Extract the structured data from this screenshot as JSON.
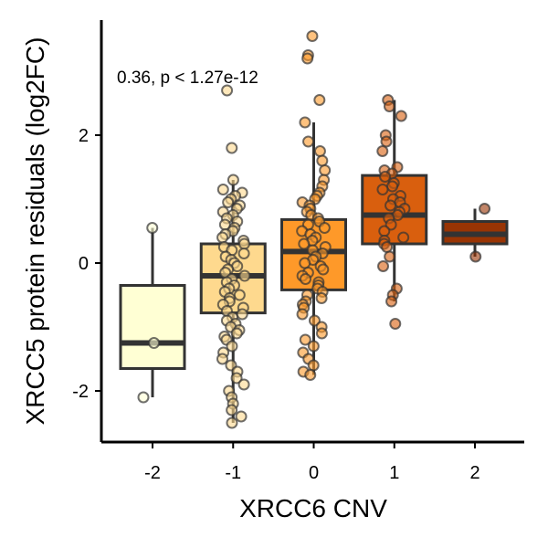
{
  "chart_data": {
    "type": "box",
    "xlabel": "XRCC6 CNV",
    "ylabel": "XRCC5 protein residuals (log2FC)",
    "annotation": "0.36,  p <  1.27e-12",
    "categories": [
      "-2",
      "-1",
      "0",
      "1",
      "2"
    ],
    "x_ticks": [
      "-2",
      "-1",
      "0",
      "1",
      "2"
    ],
    "y_ticks": [
      -2,
      0,
      2
    ],
    "ylim": [
      -2.8,
      3.8
    ],
    "grid": false,
    "colors": [
      "#ffffd4",
      "#fed98e",
      "#fe9929",
      "#d95f0e",
      "#993404"
    ],
    "boxes": [
      {
        "category": "-2",
        "q1": -1.65,
        "median": -1.25,
        "q3": -0.35,
        "whisker_low": -2.1,
        "whisker_high": 0.55
      },
      {
        "category": "-1",
        "q1": -0.78,
        "median": -0.2,
        "q3": 0.3,
        "whisker_low": -2.5,
        "whisker_high": 1.3
      },
      {
        "category": "0",
        "q1": -0.42,
        "median": 0.18,
        "q3": 0.68,
        "whisker_low": -1.75,
        "whisker_high": 2.2
      },
      {
        "category": "1",
        "q1": 0.3,
        "median": 0.75,
        "q3": 1.37,
        "whisker_low": -0.6,
        "whisker_high": 2.55
      },
      {
        "category": "2",
        "q1": 0.3,
        "median": 0.45,
        "q3": 0.65,
        "whisker_low": 0.1,
        "whisker_high": 0.85
      }
    ],
    "points": [
      {
        "category": "-2",
        "y": [
          0.55,
          -1.25,
          -2.1
        ]
      },
      {
        "category": "-1",
        "y": [
          2.7,
          1.8,
          1.3,
          1.15,
          1.1,
          1.05,
          1.0,
          0.95,
          0.9,
          0.85,
          0.8,
          0.75,
          0.7,
          0.65,
          0.6,
          0.55,
          0.5,
          0.45,
          0.4,
          0.35,
          0.3,
          0.25,
          0.2,
          0.15,
          0.1,
          0.05,
          0.0,
          -0.05,
          -0.1,
          -0.15,
          -0.2,
          -0.25,
          -0.3,
          -0.35,
          -0.4,
          -0.45,
          -0.5,
          -0.55,
          -0.6,
          -0.65,
          -0.7,
          -0.75,
          -0.8,
          -0.85,
          -0.9,
          -0.95,
          -1.0,
          -1.05,
          -1.1,
          -1.15,
          -1.2,
          -1.3,
          -1.4,
          -1.5,
          -1.6,
          -1.7,
          -1.8,
          -1.9,
          -2.0,
          -2.1,
          -2.2,
          -2.3,
          -2.4,
          -2.5
        ]
      },
      {
        "category": "0",
        "y": [
          3.55,
          3.25,
          3.2,
          2.55,
          2.2,
          1.9,
          1.75,
          1.6,
          1.45,
          1.3,
          1.2,
          1.1,
          1.05,
          1.0,
          0.95,
          0.9,
          0.85,
          0.8,
          0.75,
          0.7,
          0.65,
          0.6,
          0.55,
          0.5,
          0.45,
          0.4,
          0.35,
          0.3,
          0.25,
          0.2,
          0.15,
          0.1,
          0.05,
          0.0,
          -0.05,
          -0.1,
          -0.15,
          -0.2,
          -0.25,
          -0.3,
          -0.35,
          -0.4,
          -0.45,
          -0.5,
          -0.55,
          -0.6,
          -0.65,
          -0.7,
          -0.8,
          -0.9,
          -1.0,
          -1.1,
          -1.2,
          -1.3,
          -1.4,
          -1.5,
          -1.6,
          -1.7,
          -1.75
        ]
      },
      {
        "category": "1",
        "y": [
          2.55,
          2.45,
          2.3,
          2.0,
          1.9,
          1.75,
          1.5,
          1.45,
          1.4,
          1.35,
          1.25,
          1.2,
          1.15,
          1.05,
          1.0,
          0.95,
          0.9,
          0.85,
          0.8,
          0.75,
          0.7,
          0.6,
          0.5,
          0.4,
          0.35,
          0.3,
          0.25,
          0.1,
          -0.05,
          -0.4,
          -0.5,
          -0.6,
          -0.95
        ]
      },
      {
        "category": "2",
        "y": [
          0.85,
          0.1
        ]
      }
    ]
  }
}
